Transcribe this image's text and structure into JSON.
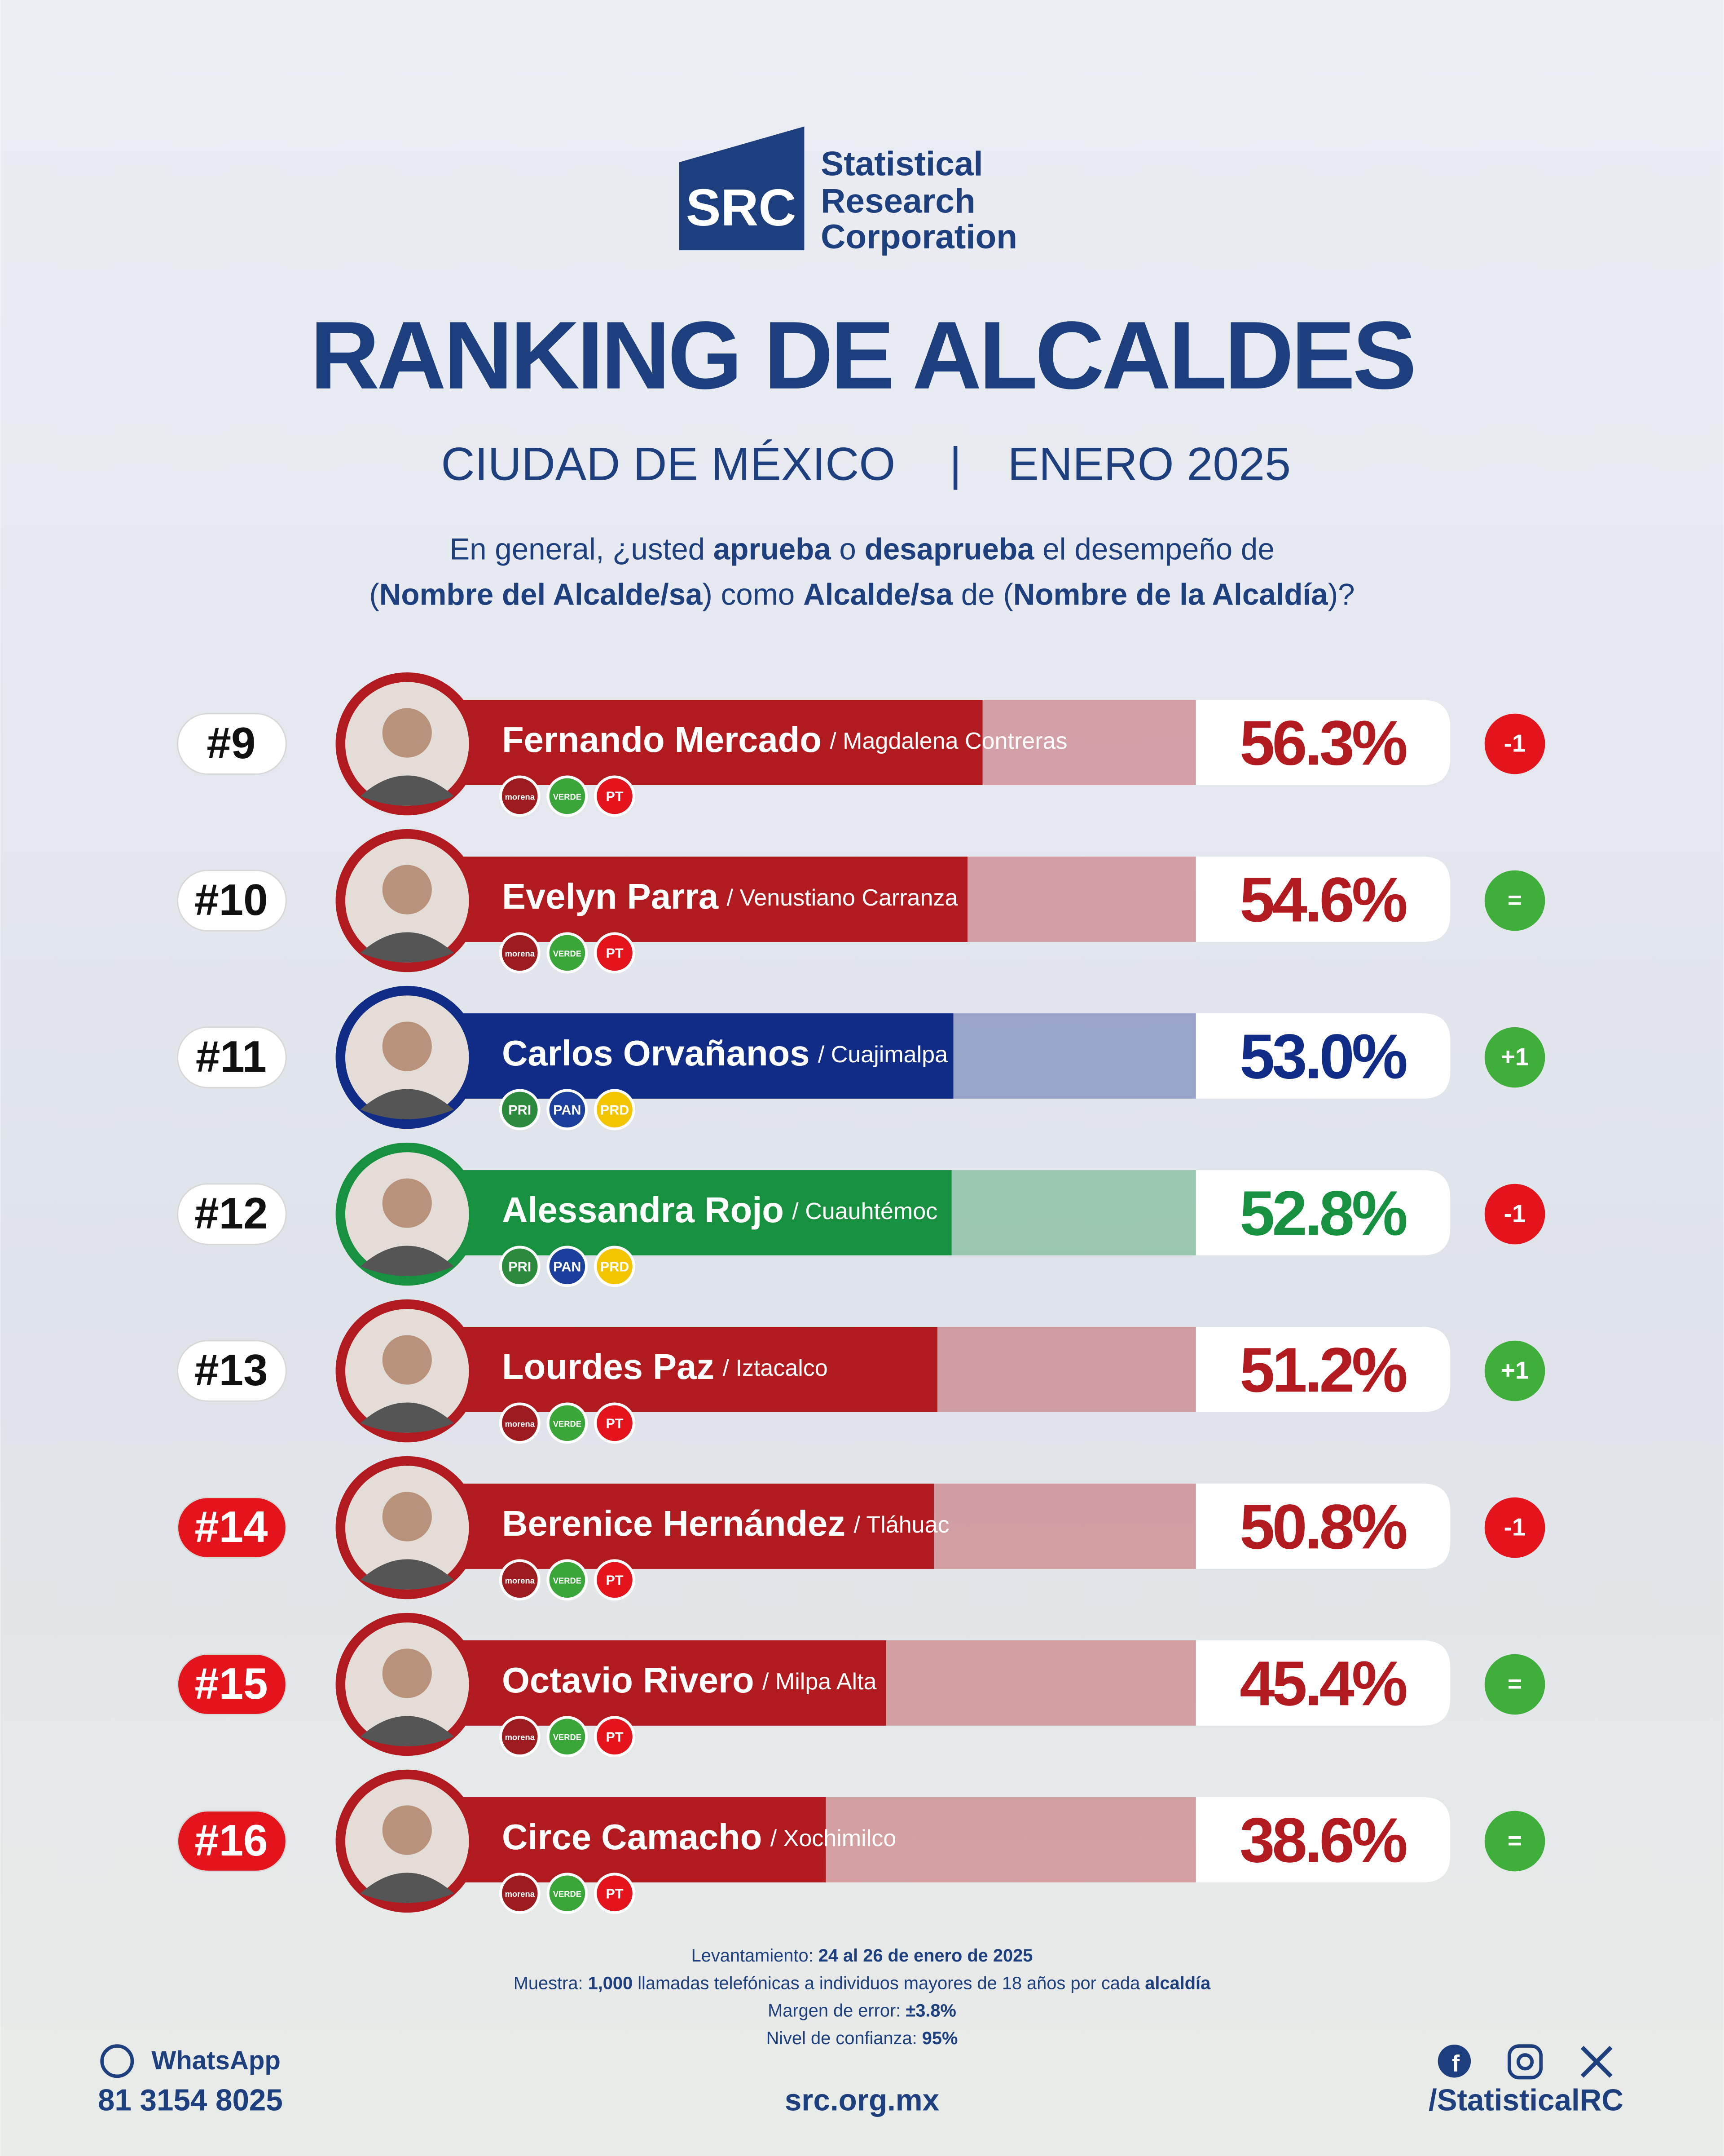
{
  "logo": {
    "mark": "SRC",
    "lines": [
      "Statistical",
      "Research",
      "Corporation"
    ]
  },
  "chart_data": {
    "type": "bar",
    "title": "RANKING DE ALCALDES",
    "subtitle": [
      "CIUDAD DE MÉXICO",
      "|",
      "ENERO 2025"
    ],
    "question": [
      [
        {
          "text": "En general, ¿usted ",
          "bold": false
        },
        {
          "text": "aprueba",
          "bold": true
        },
        {
          "text": " o ",
          "bold": false
        },
        {
          "text": "desaprueba",
          "bold": true
        },
        {
          "text": " el desempeño de",
          "bold": false
        }
      ],
      [
        {
          "text": "(",
          "bold": false
        },
        {
          "text": "Nombre del Alcalde/sa",
          "bold": true
        },
        {
          "text": ") como ",
          "bold": false
        },
        {
          "text": "Alcalde/sa",
          "bold": true
        },
        {
          "text": " de (",
          "bold": false
        },
        {
          "text": "Nombre de la Alcaldía",
          "bold": true
        },
        {
          "text": ")?",
          "bold": false
        }
      ]
    ],
    "ranks": [
      "#9",
      "#10",
      "#11",
      "#12",
      "#13",
      "#14",
      "#15",
      "#16"
    ],
    "rank_colors": [
      "#ffffff",
      "#ffffff",
      "#ffffff",
      "#ffffff",
      "#ffffff",
      "#e3141b",
      "#e3141b",
      "#e3141b"
    ],
    "rank_text_colors": [
      "#111111",
      "#111111",
      "#111111",
      "#111111",
      "#111111",
      "#ffffff",
      "#ffffff",
      "#ffffff"
    ],
    "categories": [
      "Fernando Mercado",
      "Evelyn Parra",
      "Carlos Orvañanos",
      "Alessandra Rojo",
      "Lourdes Paz",
      "Berenice Hernández",
      "Octavio Rivero",
      "Circe Camacho"
    ],
    "alcaldias": [
      "/ Magdalena Contreras",
      "/ Venustiano Carranza",
      "/ Cuajimalpa",
      "/ Cuauhtémoc",
      "/ Iztacalco",
      "/ Tláhuac",
      "/ Milpa Alta",
      "/ Xochimilco"
    ],
    "values": [
      56.3,
      54.6,
      53.0,
      52.8,
      51.2,
      50.8,
      45.4,
      38.6
    ],
    "value_labels": [
      "56.3%",
      "54.6%",
      "53.0%",
      "52.8%",
      "51.2%",
      "50.8%",
      "45.4%",
      "38.6%"
    ],
    "colors": [
      "#b11a1f",
      "#b11a1f",
      "#102c86",
      "#17913f",
      "#b11a1f",
      "#b11a1f",
      "#b11a1f",
      "#b11a1f"
    ],
    "changes": [
      "-1",
      "=",
      "+1",
      "-1",
      "+1",
      "-1",
      "=",
      "="
    ],
    "change_colors": [
      "#e3141b",
      "#3fae3a",
      "#3fae3a",
      "#e3141b",
      "#3fae3a",
      "#e3141b",
      "#3fae3a",
      "#3fae3a"
    ],
    "parties": [
      [
        {
          "label": "morena",
          "color": "#9b1b1e"
        },
        {
          "label": "VERDE",
          "color": "#3aa63a"
        },
        {
          "label": "PT",
          "color": "#e3141b"
        }
      ],
      [
        {
          "label": "morena",
          "color": "#9b1b1e"
        },
        {
          "label": "VERDE",
          "color": "#3aa63a"
        },
        {
          "label": "PT",
          "color": "#e3141b"
        }
      ],
      [
        {
          "label": "PRI",
          "color": "#2c8a3c"
        },
        {
          "label": "PAN",
          "color": "#1b3f9a"
        },
        {
          "label": "PRD",
          "color": "#f2c500"
        }
      ],
      [
        {
          "label": "PRI",
          "color": "#2c8a3c"
        },
        {
          "label": "PAN",
          "color": "#1b3f9a"
        },
        {
          "label": "PRD",
          "color": "#f2c500"
        }
      ],
      [
        {
          "label": "morena",
          "color": "#9b1b1e"
        },
        {
          "label": "VERDE",
          "color": "#3aa63a"
        },
        {
          "label": "PT",
          "color": "#e3141b"
        }
      ],
      [
        {
          "label": "morena",
          "color": "#9b1b1e"
        },
        {
          "label": "VERDE",
          "color": "#3aa63a"
        },
        {
          "label": "PT",
          "color": "#e3141b"
        }
      ],
      [
        {
          "label": "morena",
          "color": "#9b1b1e"
        },
        {
          "label": "VERDE",
          "color": "#3aa63a"
        },
        {
          "label": "PT",
          "color": "#e3141b"
        }
      ],
      [
        {
          "label": "morena",
          "color": "#9b1b1e"
        },
        {
          "label": "VERDE",
          "color": "#3aa63a"
        },
        {
          "label": "PT",
          "color": "#e3141b"
        }
      ]
    ],
    "xlim": [
      0,
      80
    ]
  },
  "notes": [
    [
      {
        "text": "Levantamiento: ",
        "bold": false
      },
      {
        "text": "24 al 26 de enero de 2025",
        "bold": true
      }
    ],
    [
      {
        "text": "Muestra: ",
        "bold": false
      },
      {
        "text": "1,000",
        "bold": true
      },
      {
        "text": " llamadas telefónicas a individuos mayores de 18 años por cada ",
        "bold": false
      },
      {
        "text": "alcaldía",
        "bold": true
      }
    ],
    [
      {
        "text": "Margen de error: ",
        "bold": false
      },
      {
        "text": "±3.8%",
        "bold": true
      }
    ],
    [
      {
        "text": "Nivel de confianza: ",
        "bold": false
      },
      {
        "text": "95%",
        "bold": true
      }
    ]
  ],
  "contact": {
    "whatsapp": "WhatsApp",
    "phone": "81 3154 8025",
    "website": "src.org.mx",
    "handle": "/StatisticalRC"
  }
}
